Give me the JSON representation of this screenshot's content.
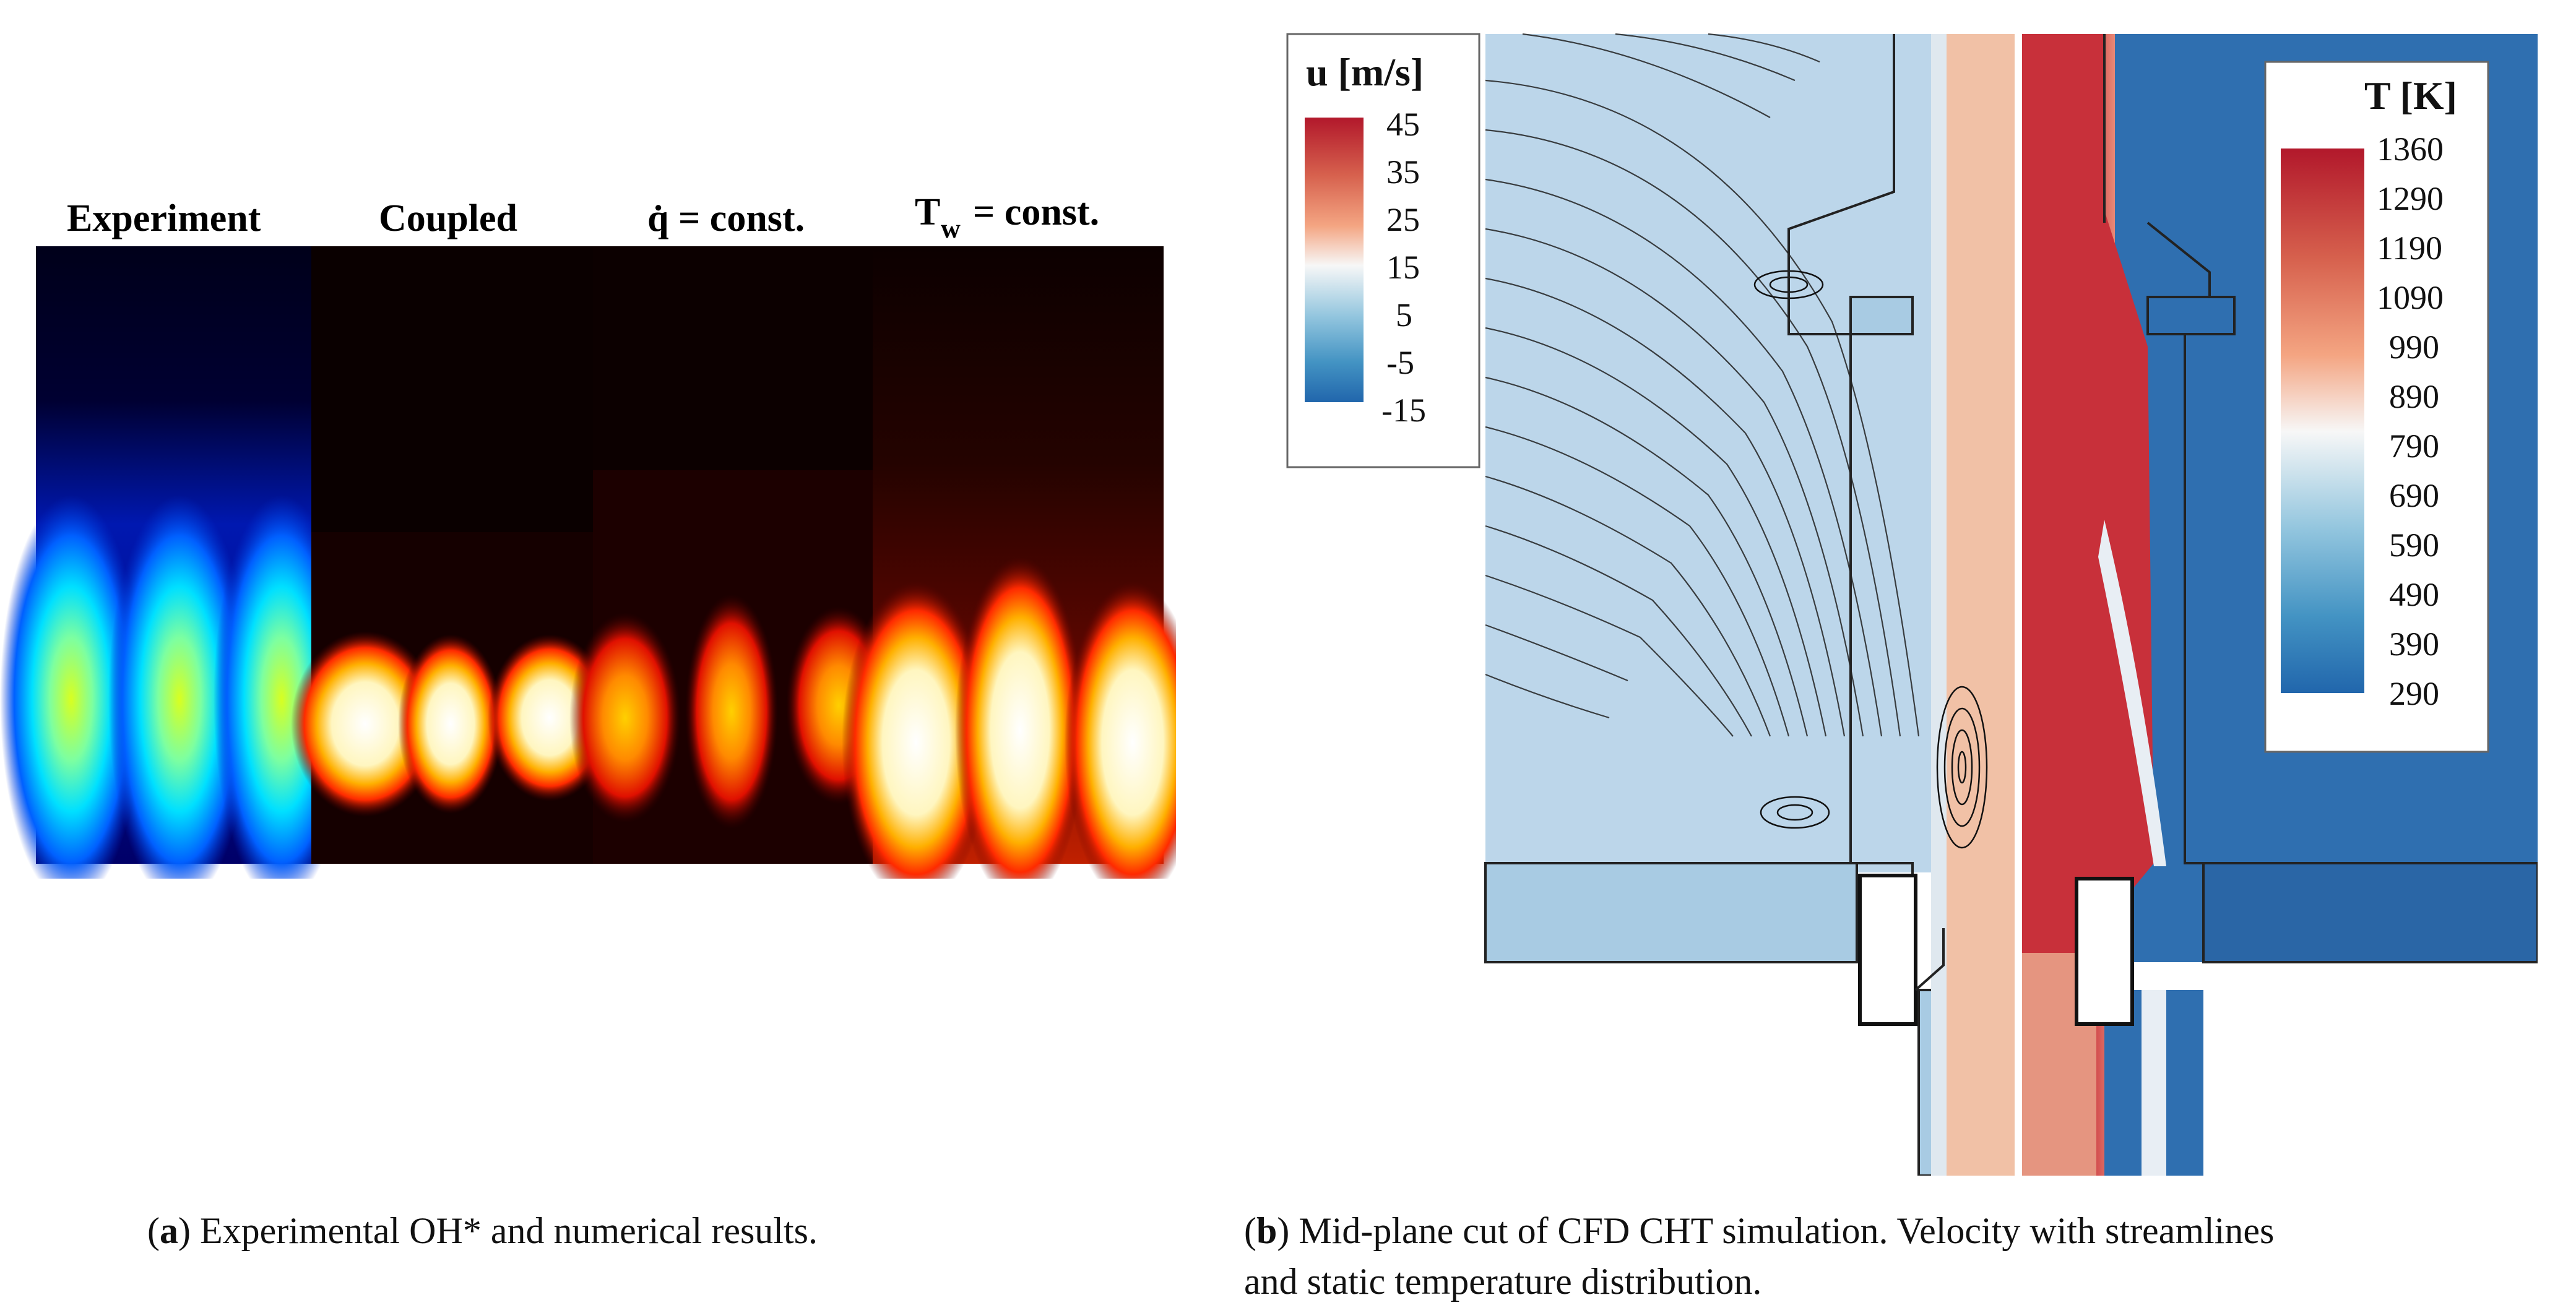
{
  "panel_a": {
    "labels": [
      "Experiment",
      "Coupled",
      "q̇ = const.",
      "T",
      "w",
      "= const."
    ],
    "caption_letter": "a",
    "caption_text": "Experimental OH* and numerical results."
  },
  "panel_b": {
    "u_legend": {
      "title": "u [m/s]",
      "ticks": [
        "45",
        "35",
        "25",
        "15",
        "5",
        "-5",
        "-15"
      ]
    },
    "t_legend": {
      "title": "T [K]",
      "ticks": [
        "1360",
        "1290",
        "1190",
        "1090",
        "990",
        "890",
        "790",
        "690",
        "590",
        "490",
        "390",
        "290"
      ]
    },
    "caption_letter": "b",
    "caption_line1": "Mid-plane cut of CFD CHT simulation.  Velocity with streamlines",
    "caption_line2": "and static temperature distribution."
  }
}
